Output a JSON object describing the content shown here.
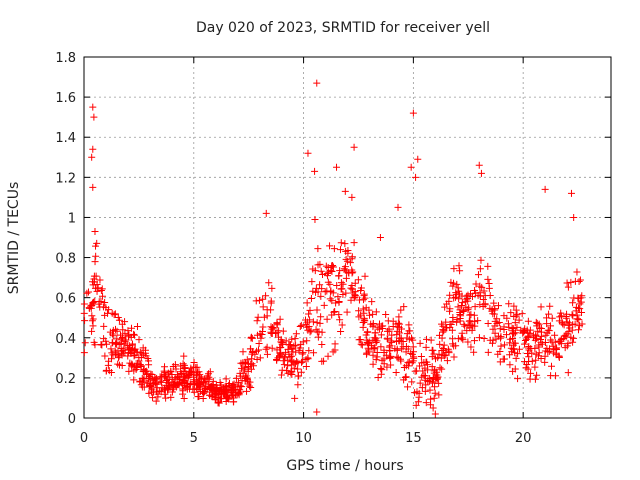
{
  "chart_data": {
    "type": "scatter",
    "title": "Day 020 of 2023, SRMTID for receiver yell",
    "xlabel": "GPS time / hours",
    "ylabel": "SRMTID / TECUs",
    "xlim": [
      0,
      24
    ],
    "ylim": [
      0,
      1.8
    ],
    "xticks": [
      0,
      5,
      10,
      15,
      20
    ],
    "xtick_labels": [
      "0",
      "5",
      "10",
      "15",
      "20"
    ],
    "yticks": [
      0,
      0.2,
      0.4,
      0.6,
      0.8,
      1,
      1.2,
      1.4,
      1.6,
      1.8
    ],
    "ytick_labels": [
      "0",
      "0.2",
      "0.4",
      "0.6",
      "0.8",
      "1",
      "1.2",
      "1.4",
      "1.6",
      "1.8"
    ],
    "grid": true,
    "marker": "+",
    "series": [
      {
        "name": "SRMTID",
        "color": "#ff0000",
        "profile_x": [
          0.0,
          0.3,
          0.5,
          0.8,
          1.0,
          1.5,
          2.0,
          2.5,
          3.0,
          3.5,
          4.0,
          4.5,
          5.0,
          5.5,
          6.0,
          6.5,
          7.0,
          7.5,
          8.0,
          8.5,
          9.0,
          9.5,
          10.0,
          10.5,
          11.0,
          11.5,
          12.0,
          12.5,
          13.0,
          13.5,
          14.0,
          14.5,
          15.0,
          15.5,
          16.0,
          16.5,
          17.0,
          17.5,
          18.0,
          18.5,
          19.0,
          19.5,
          20.0,
          20.5,
          21.0,
          21.5,
          22.0,
          22.5
        ],
        "profile_y": [
          0.45,
          0.5,
          0.7,
          0.55,
          0.4,
          0.38,
          0.35,
          0.32,
          0.18,
          0.17,
          0.18,
          0.2,
          0.2,
          0.16,
          0.13,
          0.12,
          0.14,
          0.25,
          0.45,
          0.5,
          0.3,
          0.3,
          0.35,
          0.6,
          0.6,
          0.65,
          0.7,
          0.55,
          0.4,
          0.35,
          0.35,
          0.4,
          0.3,
          0.25,
          0.2,
          0.45,
          0.5,
          0.55,
          0.6,
          0.5,
          0.45,
          0.4,
          0.38,
          0.35,
          0.4,
          0.35,
          0.45,
          0.55
        ],
        "spread": [
          0.25,
          0.35,
          0.4,
          0.3,
          0.25,
          0.22,
          0.2,
          0.18,
          0.12,
          0.11,
          0.11,
          0.12,
          0.12,
          0.1,
          0.09,
          0.08,
          0.1,
          0.2,
          0.3,
          0.3,
          0.2,
          0.2,
          0.3,
          0.4,
          0.4,
          0.4,
          0.4,
          0.35,
          0.25,
          0.2,
          0.2,
          0.25,
          0.3,
          0.25,
          0.2,
          0.3,
          0.3,
          0.3,
          0.35,
          0.3,
          0.25,
          0.22,
          0.22,
          0.2,
          0.25,
          0.25,
          0.3,
          0.3
        ],
        "x_range": [
          0.0,
          22.7
        ],
        "point_count": 1400,
        "highlights": [
          {
            "x": 0.4,
            "y": 1.55
          },
          {
            "x": 0.45,
            "y": 1.5
          },
          {
            "x": 0.4,
            "y": 1.34
          },
          {
            "x": 0.35,
            "y": 1.3
          },
          {
            "x": 0.4,
            "y": 1.15
          },
          {
            "x": 0.5,
            "y": 0.93
          },
          {
            "x": 10.6,
            "y": 1.67
          },
          {
            "x": 10.2,
            "y": 1.32
          },
          {
            "x": 10.5,
            "y": 1.23
          },
          {
            "x": 12.3,
            "y": 1.35
          },
          {
            "x": 11.5,
            "y": 1.25
          },
          {
            "x": 11.9,
            "y": 1.13
          },
          {
            "x": 12.2,
            "y": 1.1
          },
          {
            "x": 15.0,
            "y": 1.52
          },
          {
            "x": 15.2,
            "y": 1.29
          },
          {
            "x": 14.9,
            "y": 1.25
          },
          {
            "x": 15.1,
            "y": 1.2
          },
          {
            "x": 14.3,
            "y": 1.05
          },
          {
            "x": 18.0,
            "y": 1.26
          },
          {
            "x": 18.1,
            "y": 1.22
          },
          {
            "x": 8.3,
            "y": 1.02
          },
          {
            "x": 21.0,
            "y": 1.14
          },
          {
            "x": 22.2,
            "y": 1.12
          },
          {
            "x": 22.3,
            "y": 1.0
          },
          {
            "x": 16.0,
            "y": 0.02
          },
          {
            "x": 15.9,
            "y": 0.05
          },
          {
            "x": 10.6,
            "y": 0.03
          },
          {
            "x": 13.5,
            "y": 0.9
          }
        ]
      }
    ]
  }
}
